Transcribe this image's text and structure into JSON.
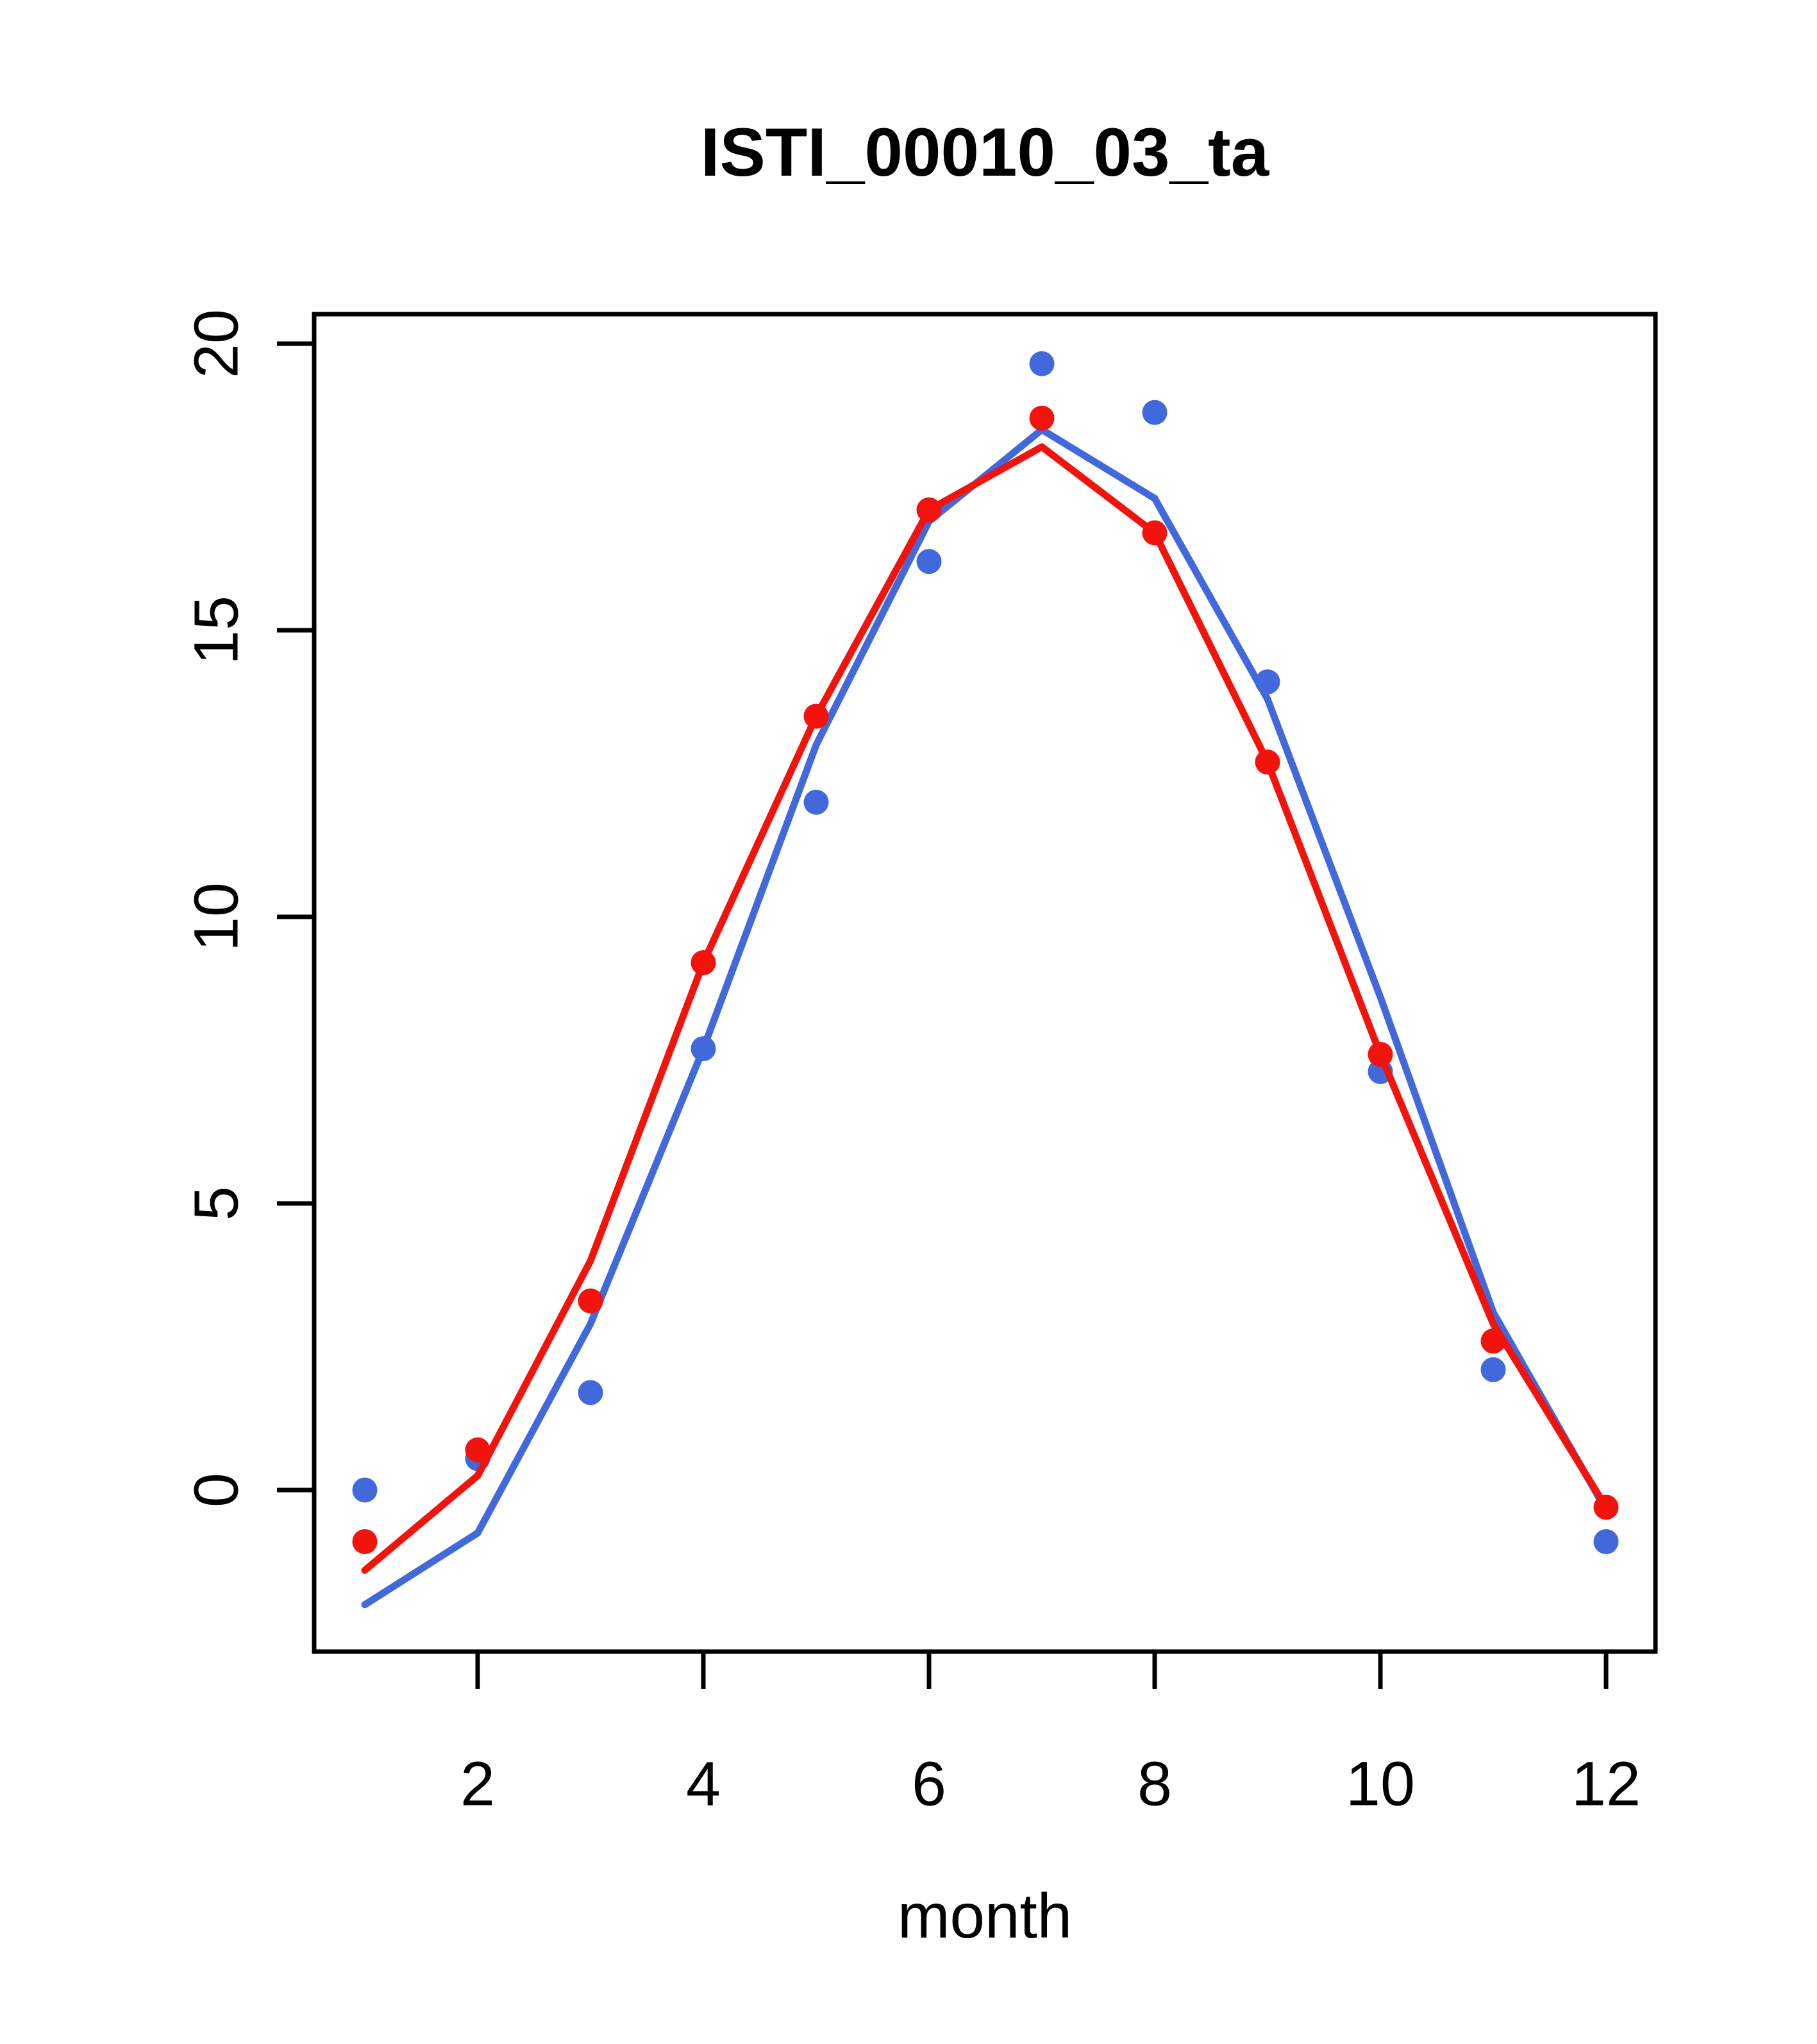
{
  "title": "ISTI_00010_03_ta",
  "chart_data": {
    "type": "scatter",
    "title": "ISTI_00010_03_ta",
    "xlabel": "month",
    "ylabel": "",
    "x": [
      1,
      2,
      3,
      4,
      5,
      6,
      7,
      8,
      9,
      10,
      11,
      12
    ],
    "x_ticks": [
      2,
      4,
      6,
      8,
      10,
      12
    ],
    "y_ticks": [
      0,
      5,
      10,
      15,
      20
    ],
    "xlim": [
      0.55,
      12.45
    ],
    "ylim": [
      -2.85,
      20.55
    ],
    "grid": false,
    "legend": "none",
    "colors": {
      "red": "#f2130c",
      "blue": "#4269dc",
      "frame": "#000000"
    },
    "series": [
      {
        "name": "blue-fit-line",
        "type": "line",
        "color": "#4269dc",
        "values": [
          -2.0,
          -0.75,
          2.9,
          7.7,
          13.0,
          16.9,
          18.5,
          17.3,
          13.8,
          8.6,
          3.1,
          -0.35
        ]
      },
      {
        "name": "blue-points",
        "type": "scatter",
        "color": "#4269dc",
        "values": [
          0.0,
          0.55,
          1.7,
          7.7,
          12.0,
          16.2,
          19.65,
          18.8,
          14.1,
          7.3,
          2.1,
          -0.9
        ]
      },
      {
        "name": "red-fit-line",
        "type": "line",
        "color": "#f2130c",
        "values": [
          -1.4,
          0.25,
          4.0,
          9.2,
          13.5,
          17.1,
          18.2,
          16.7,
          12.7,
          7.6,
          2.9,
          -0.3
        ]
      },
      {
        "name": "red-points",
        "type": "scatter",
        "color": "#f2130c",
        "values": [
          -0.9,
          0.7,
          3.3,
          9.2,
          13.5,
          17.1,
          18.7,
          16.7,
          12.7,
          7.6,
          2.6,
          -0.3
        ]
      }
    ]
  }
}
